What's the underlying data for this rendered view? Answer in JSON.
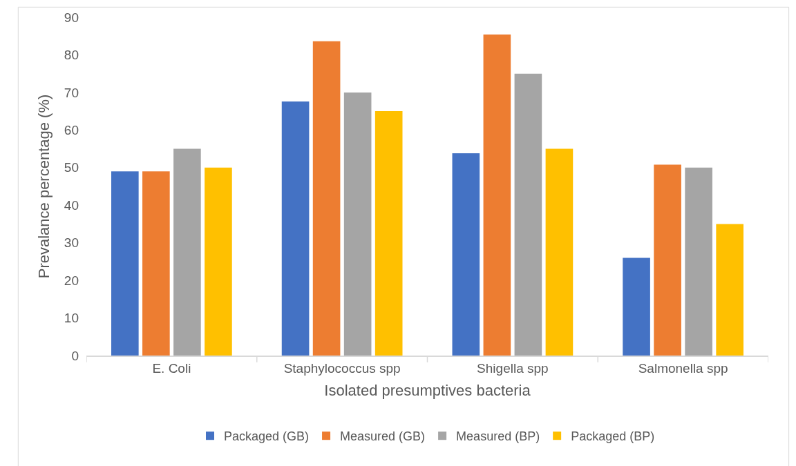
{
  "chart_data": {
    "type": "bar",
    "xlabel": "Isolated presumptives bacteria",
    "ylabel": "Prevalance percentage (%)",
    "categories": [
      "E. Coli",
      "Staphylococcus spp",
      "Shigella spp",
      "Salmonella spp"
    ],
    "series": [
      {
        "name": "Packaged (GB)",
        "color": "#4472c4",
        "values": [
          49,
          67.6,
          53.8,
          26
        ]
      },
      {
        "name": "Measured (GB)",
        "color": "#ed7d31",
        "values": [
          49,
          83.6,
          85.4,
          50.8
        ]
      },
      {
        "name": "Measured (BP)",
        "color": "#a5a5a5",
        "values": [
          55,
          70,
          75,
          50
        ]
      },
      {
        "name": "Packaged (BP)",
        "color": "#ffc000",
        "values": [
          50,
          65,
          55,
          35
        ]
      }
    ],
    "ylim": [
      0,
      90
    ],
    "yticks": [
      0,
      10,
      20,
      30,
      40,
      50,
      60,
      70,
      80,
      90
    ],
    "grid": false,
    "legend": "bottom"
  }
}
